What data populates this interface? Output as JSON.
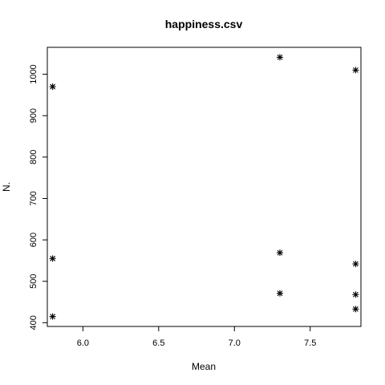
{
  "chart_data": {
    "type": "scatter",
    "title": "happiness.csv",
    "xlabel": "Mean",
    "ylabel": "N.",
    "xlim": [
      5.765,
      7.835
    ],
    "ylim": [
      391,
      1065
    ],
    "xticks": [
      6.0,
      6.5,
      7.0,
      7.5
    ],
    "xtick_labels": [
      "6.0",
      "6.5",
      "7.0",
      "7.5"
    ],
    "yticks": [
      400,
      500,
      600,
      700,
      800,
      900,
      1000
    ],
    "ytick_labels": [
      "400",
      "500",
      "600",
      "700",
      "800",
      "900",
      "1000"
    ],
    "marker": "asterisk",
    "grid": false,
    "points": [
      {
        "x": 5.8,
        "y": 970
      },
      {
        "x": 5.8,
        "y": 555
      },
      {
        "x": 5.8,
        "y": 415
      },
      {
        "x": 7.3,
        "y": 1041
      },
      {
        "x": 7.3,
        "y": 569
      },
      {
        "x": 7.3,
        "y": 471
      },
      {
        "x": 7.8,
        "y": 1010
      },
      {
        "x": 7.8,
        "y": 542
      },
      {
        "x": 7.8,
        "y": 468
      },
      {
        "x": 7.8,
        "y": 433
      }
    ]
  }
}
